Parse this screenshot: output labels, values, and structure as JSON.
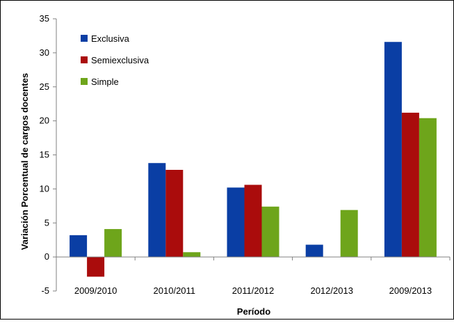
{
  "chart_data": {
    "type": "bar",
    "title": "",
    "xlabel": "Período",
    "ylabel": "Variación Porcentual de cargos docentes",
    "categories": [
      "2009/2010",
      "2010/2011",
      "2011/2012",
      "2012/2013",
      "2009/2013"
    ],
    "series": [
      {
        "name": "Exclusiva",
        "color": "#0a3ea4",
        "values": [
          3.2,
          13.8,
          10.2,
          1.8,
          31.6
        ]
      },
      {
        "name": "Semiexclusiva",
        "color": "#aa0c0c",
        "values": [
          -2.9,
          12.8,
          10.6,
          0,
          21.2
        ]
      },
      {
        "name": "Simple",
        "color": "#6ea51b",
        "values": [
          4.1,
          0.7,
          7.4,
          6.9,
          20.4
        ]
      }
    ],
    "ylim": [
      -5,
      35
    ],
    "yticks": [
      "-5",
      "0",
      "5",
      "10",
      "15",
      "20",
      "25",
      "30",
      "35"
    ],
    "legend_position": "top-left",
    "grid": false
  }
}
